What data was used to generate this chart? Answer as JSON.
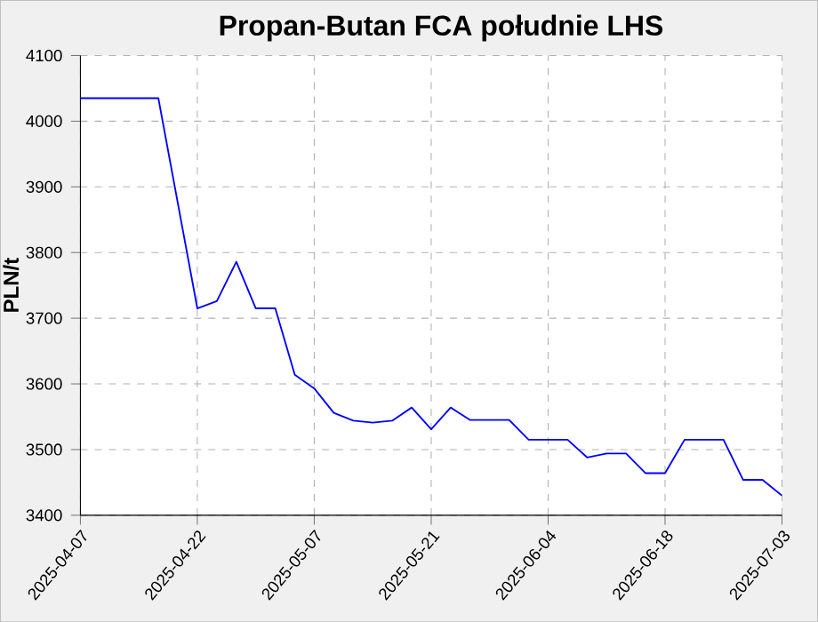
{
  "chart_data": {
    "type": "line",
    "title": "Propan-Butan FCA południe LHS",
    "ylabel": "PLN/t",
    "categories": [
      "2025-04-07",
      null,
      null,
      null,
      null,
      null,
      "2025-04-22",
      null,
      null,
      null,
      null,
      null,
      "2025-05-07",
      null,
      null,
      null,
      null,
      null,
      "2025-05-21",
      null,
      null,
      null,
      null,
      null,
      "2025-06-04",
      null,
      null,
      null,
      null,
      null,
      "2025-06-18",
      null,
      null,
      null,
      null,
      null,
      "2025-07-03"
    ],
    "values": [
      4035,
      4035,
      4035,
      4035,
      4035,
      3875,
      3715,
      3726,
      3786,
      3715,
      3715,
      3614,
      3593,
      3556,
      3544,
      3541,
      3544,
      3564,
      3531,
      3564,
      3545,
      3545,
      3545,
      3515,
      3515,
      3515,
      3488,
      3494,
      3494,
      3464,
      3464,
      3515,
      3515,
      3515,
      3454,
      3454,
      3430
    ],
    "color": "#0000ff",
    "marker": "none",
    "ylim": [
      3400,
      4100
    ],
    "yticks": [
      3400,
      3500,
      3600,
      3700,
      3800,
      3900,
      4000,
      4100
    ],
    "grid": true
  }
}
